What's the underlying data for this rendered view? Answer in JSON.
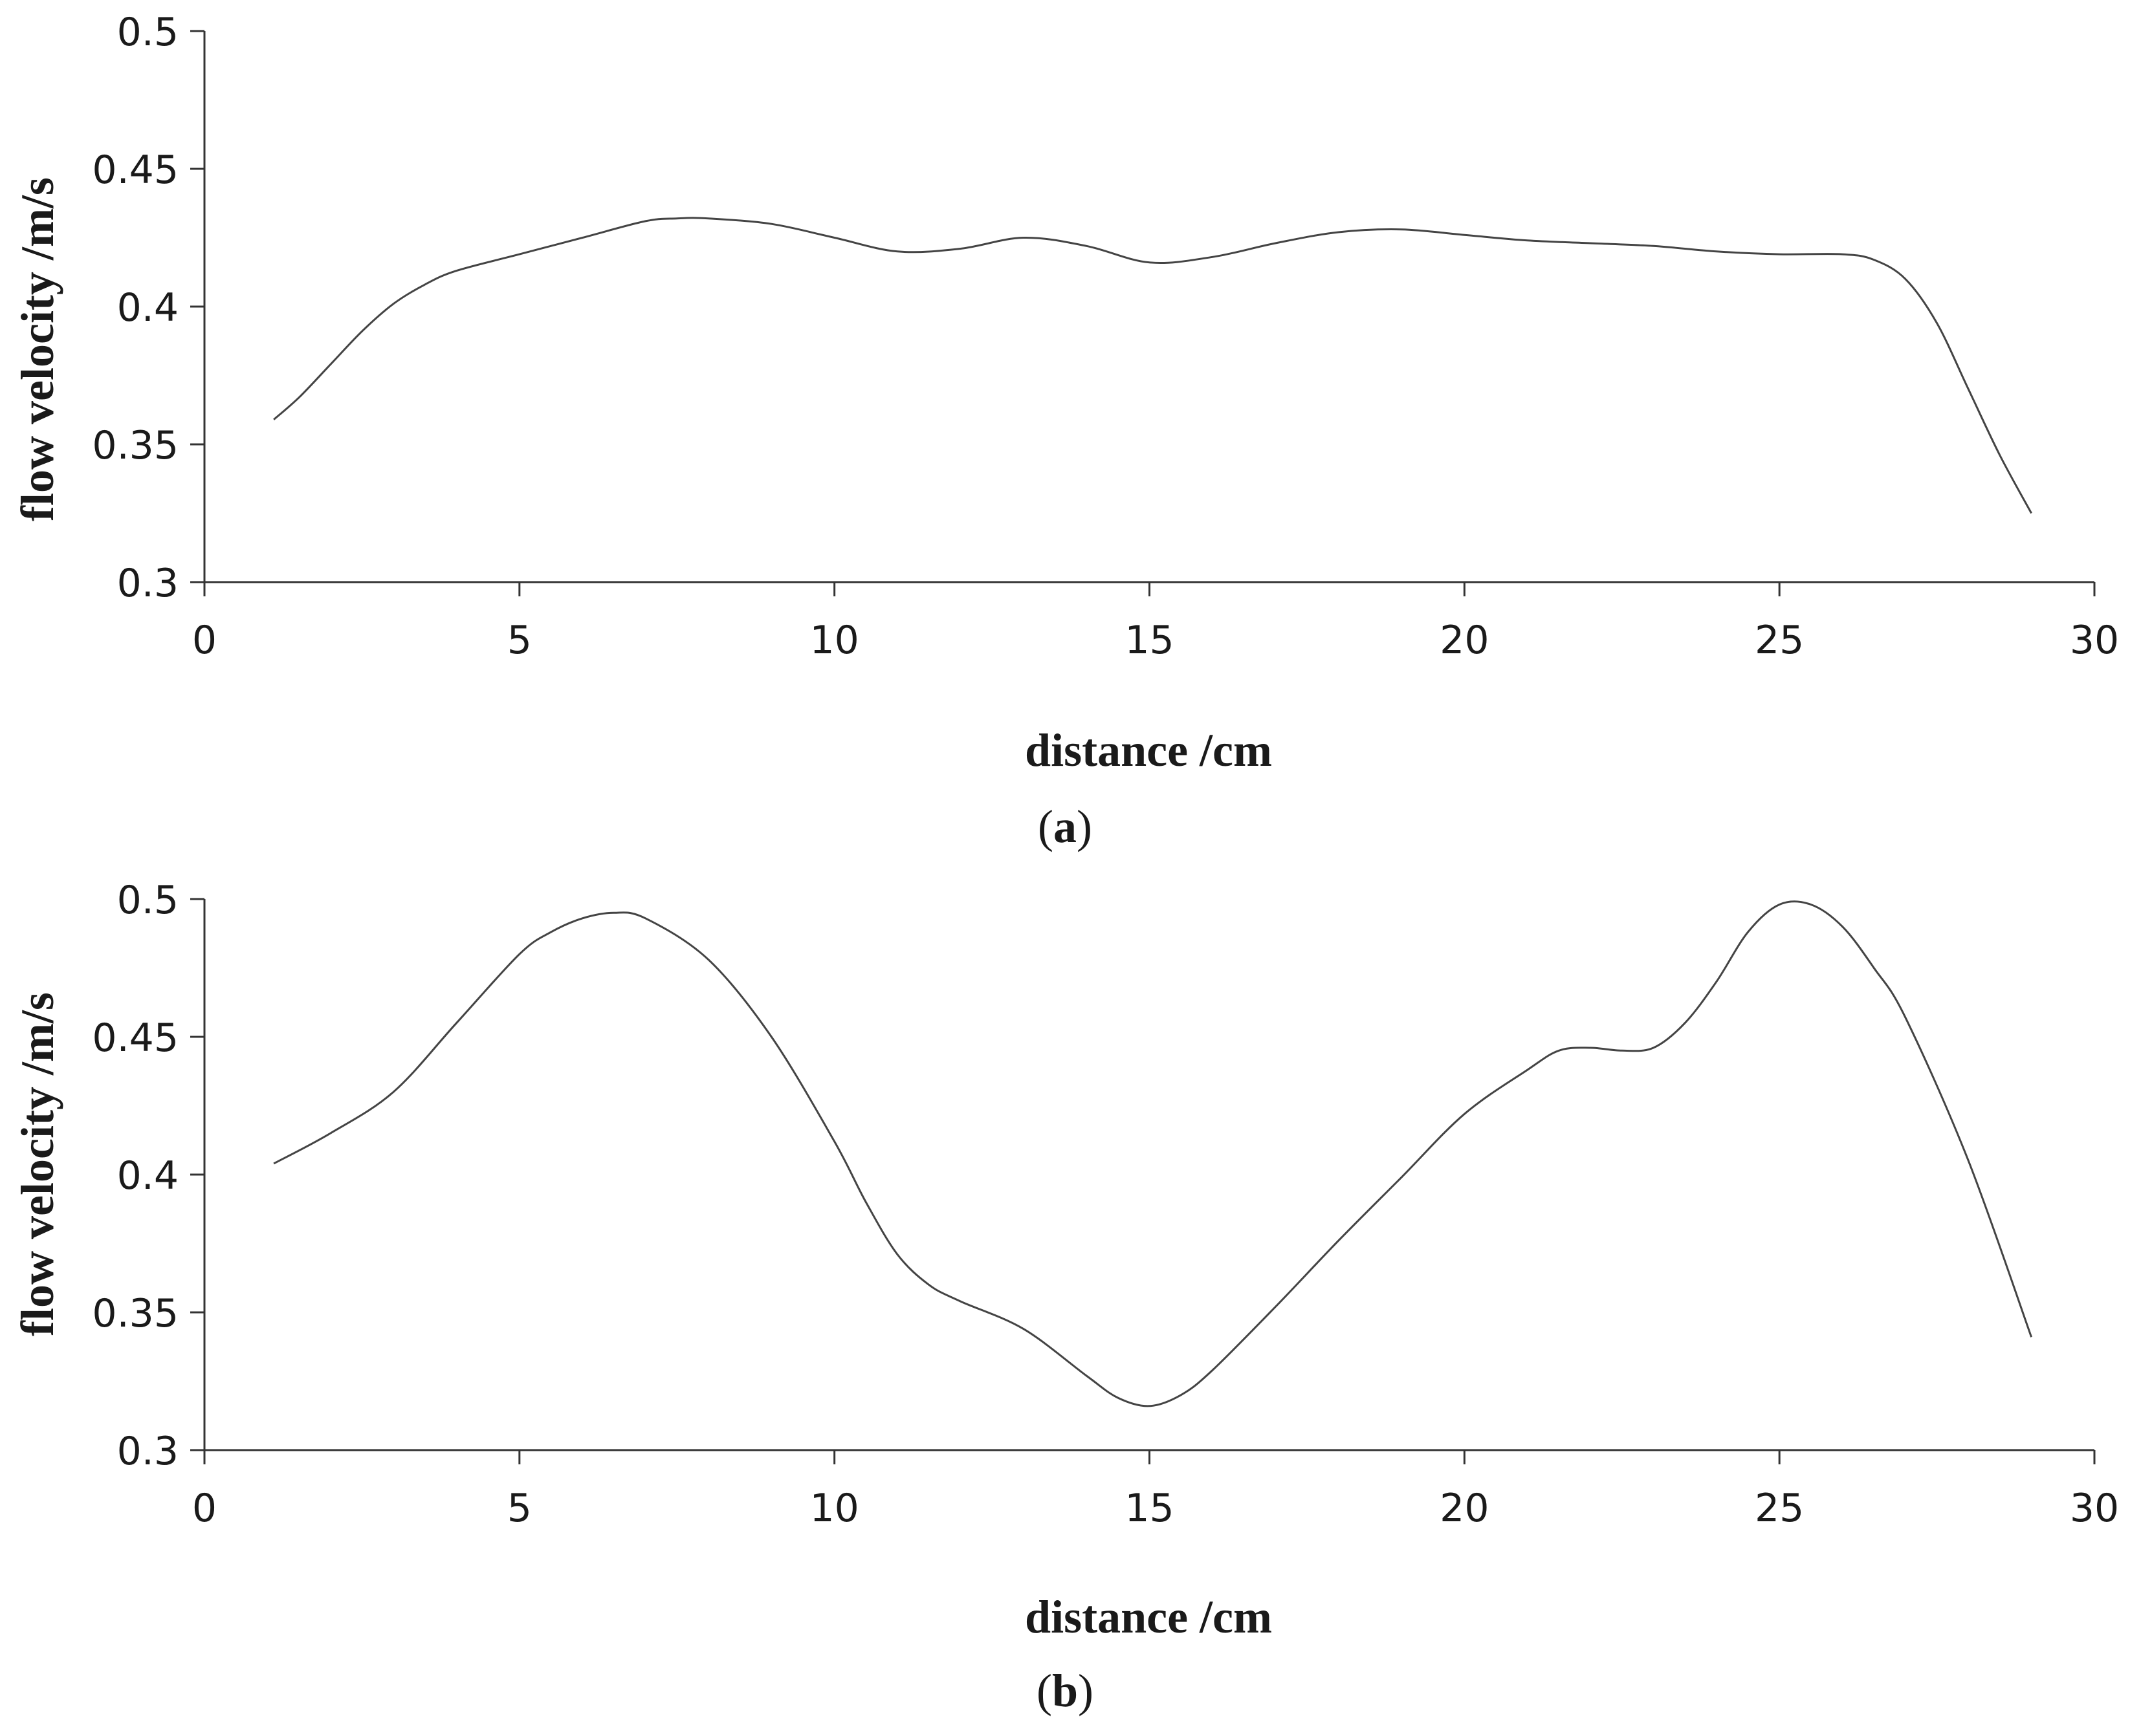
{
  "chart_data": [
    {
      "type": "line",
      "panel_label_open": "(",
      "panel_label_letter": "a",
      "panel_label_close": ")",
      "xlabel": "distance /cm",
      "ylabel": "flow velocity /m/s",
      "xlim": [
        0,
        30
      ],
      "ylim": [
        0.3,
        0.5
      ],
      "xticks": [
        "0",
        "5",
        "10",
        "15",
        "20",
        "25",
        "30"
      ],
      "yticks": [
        "0.3",
        "0.35",
        "0.4",
        "0.45",
        "0.5"
      ],
      "grid": false,
      "series": [
        {
          "line_color": "#444444",
          "x": [
            1.1,
            1.5,
            2.0,
            2.5,
            3.0,
            3.5,
            4.0,
            5.0,
            6.0,
            7.0,
            7.5,
            8.0,
            9.0,
            10.0,
            11.0,
            12.0,
            13.0,
            14.0,
            15.0,
            16.0,
            17.0,
            18.0,
            19.0,
            20.0,
            21.0,
            22.0,
            23.0,
            24.0,
            25.0,
            26.0,
            26.5,
            27.0,
            27.5,
            28.0,
            28.5,
            29.0
          ],
          "y": [
            0.359,
            0.367,
            0.379,
            0.391,
            0.401,
            0.408,
            0.413,
            0.419,
            0.425,
            0.431,
            0.432,
            0.432,
            0.43,
            0.425,
            0.42,
            0.421,
            0.425,
            0.422,
            0.416,
            0.418,
            0.423,
            0.427,
            0.428,
            0.426,
            0.424,
            0.423,
            0.422,
            0.42,
            0.419,
            0.419,
            0.417,
            0.41,
            0.394,
            0.37,
            0.346,
            0.325
          ]
        }
      ]
    },
    {
      "type": "line",
      "panel_label_open": "(",
      "panel_label_letter": "b",
      "panel_label_close": ")",
      "xlabel": "distance /cm",
      "ylabel": "flow velocity /m/s",
      "xlim": [
        0,
        30
      ],
      "ylim": [
        0.3,
        0.5
      ],
      "xticks": [
        "0",
        "5",
        "10",
        "15",
        "20",
        "25",
        "30"
      ],
      "yticks": [
        "0.3",
        "0.35",
        "0.4",
        "0.45",
        "0.5"
      ],
      "grid": false,
      "series": [
        {
          "line_color": "#444444",
          "x": [
            1.1,
            2.0,
            3.0,
            4.0,
            5.0,
            5.5,
            6.0,
            6.5,
            7.0,
            8.0,
            9.0,
            10.0,
            10.5,
            11.0,
            11.5,
            12.0,
            13.0,
            14.0,
            14.5,
            15.0,
            15.5,
            16.0,
            17.0,
            18.0,
            19.0,
            20.0,
            21.0,
            21.5,
            22.0,
            22.5,
            23.0,
            23.5,
            24.0,
            24.5,
            25.0,
            25.5,
            26.0,
            26.5,
            27.0,
            28.0,
            29.0
          ],
          "y": [
            0.404,
            0.415,
            0.43,
            0.455,
            0.48,
            0.488,
            0.493,
            0.495,
            0.493,
            0.478,
            0.45,
            0.412,
            0.39,
            0.371,
            0.36,
            0.354,
            0.344,
            0.327,
            0.319,
            0.316,
            0.32,
            0.329,
            0.352,
            0.376,
            0.399,
            0.422,
            0.438,
            0.445,
            0.446,
            0.445,
            0.446,
            0.455,
            0.47,
            0.488,
            0.498,
            0.498,
            0.49,
            0.475,
            0.457,
            0.405,
            0.341
          ]
        }
      ]
    }
  ]
}
